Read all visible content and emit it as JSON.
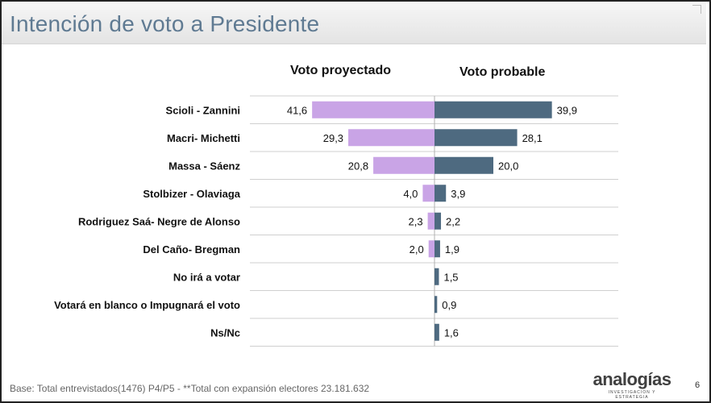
{
  "slide": {
    "title": "Intención de voto a Presidente",
    "footer": "Base: Total entrevistados(1476) P4/P5    -   **Total con expansión electores 23.181.632",
    "logo_text": "analogías",
    "logo_sub": "INVESTIGACION Y ESTRATEGIA",
    "page_number": "6"
  },
  "chart_data": {
    "type": "bar",
    "layout": "back-to-back horizontal bars",
    "categories": [
      "Scioli -  Zannini",
      "Macri-  Michetti",
      "Massa - Sáenz",
      "Stolbizer - Olaviaga",
      "Rodriguez Saá- Negre de Alonso",
      "Del Caño- Bregman",
      "No irá a votar",
      "Votará en blanco o Impugnará el voto",
      "Ns/Nc"
    ],
    "series": [
      {
        "name": "Voto proyectado",
        "side": "left",
        "color": "#c9a4e6",
        "values": [
          41.6,
          29.3,
          20.8,
          4.0,
          2.3,
          2.0,
          null,
          null,
          null
        ],
        "labels": [
          "41,6",
          "29,3",
          "20,8",
          "4,0",
          "2,3",
          "2,0",
          "",
          "",
          ""
        ]
      },
      {
        "name": "Voto probable",
        "side": "right",
        "color": "#4e6a80",
        "values": [
          39.9,
          28.1,
          20.0,
          3.9,
          2.2,
          1.9,
          1.5,
          0.9,
          1.6
        ],
        "labels": [
          "39,9",
          "28,1",
          "20,0",
          "3,9",
          "2,2",
          "1,9",
          "1,5",
          "0,9",
          "1,6"
        ]
      }
    ],
    "grid": "horizontal separators between categories",
    "legend": "column headers above each side"
  }
}
